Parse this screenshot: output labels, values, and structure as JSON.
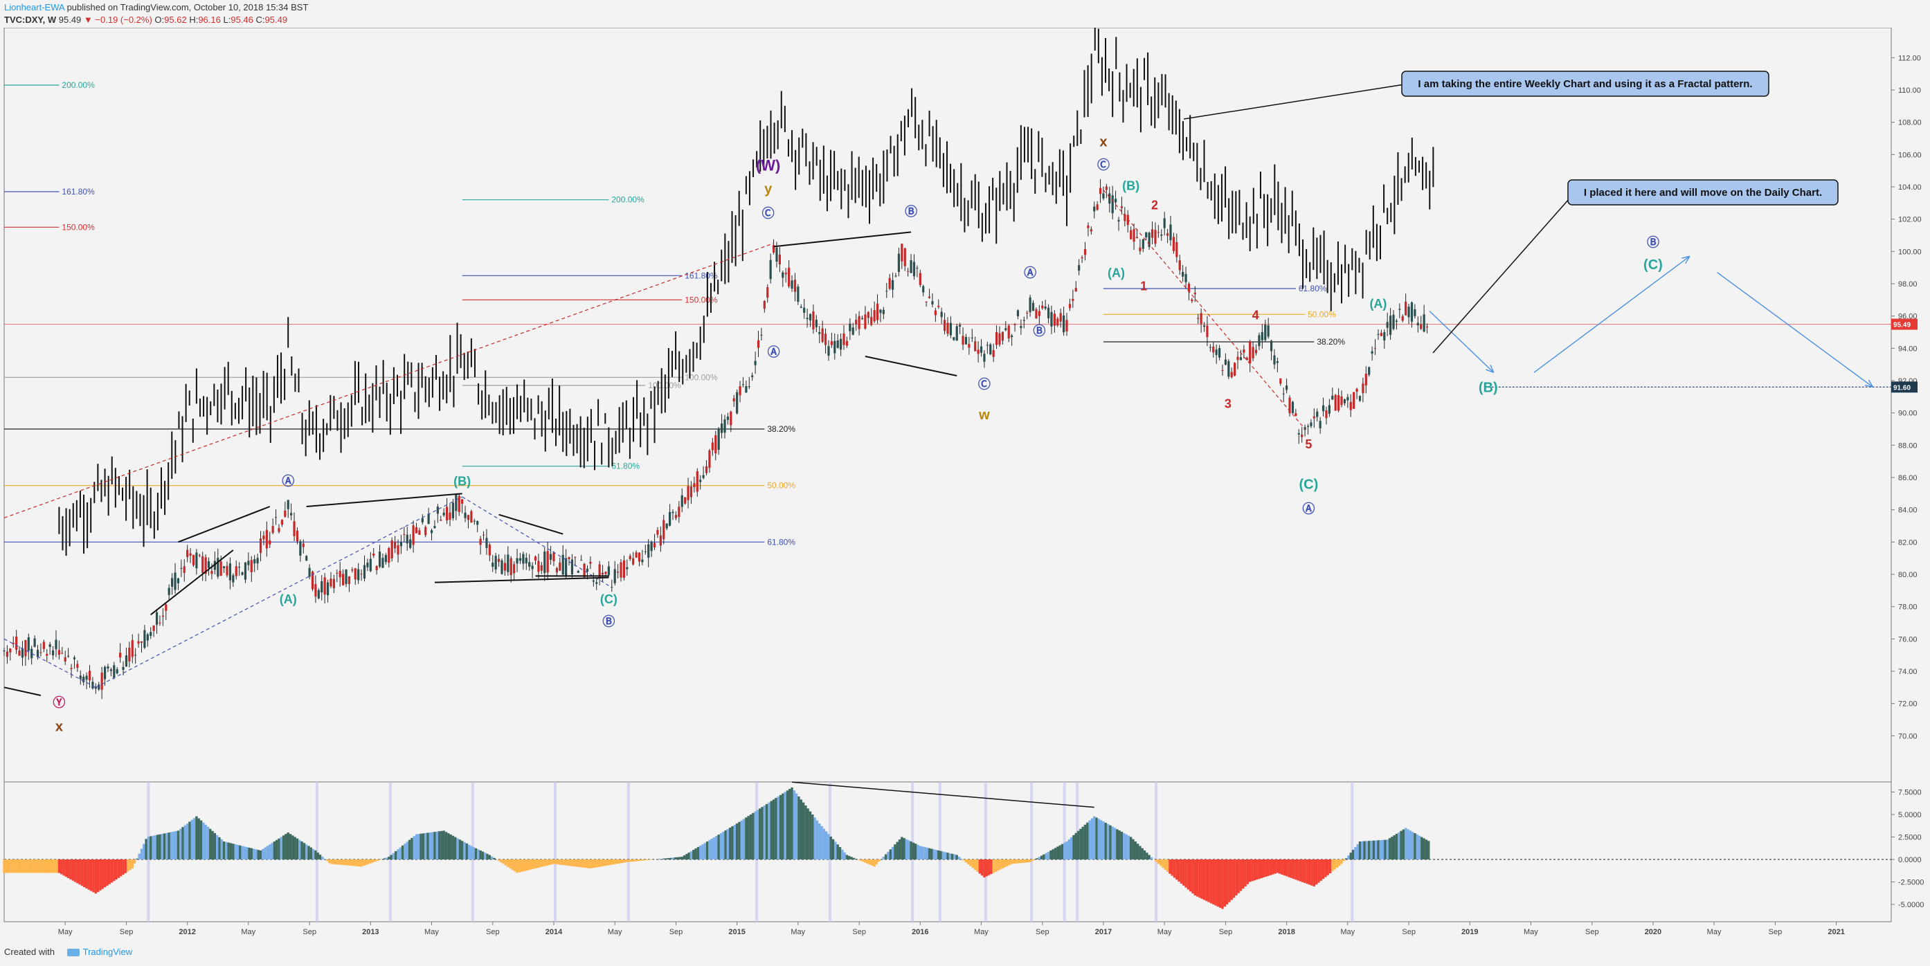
{
  "header": {
    "author": "Lionheart-EWA",
    "published": "published on TradingView.com, October 10, 2018 15:34 BST",
    "symbol": "TVC:DXY, W",
    "last": "95.49",
    "change": "▼ −0.19 (−0.2%)",
    "o_label": "O:",
    "o": "95.62",
    "h_label": "H:",
    "h": "96.16",
    "l_label": "L:",
    "l": "95.46",
    "c_label": "C:",
    "c": "95.49"
  },
  "footer": {
    "created": "Created with",
    "brand": "TradingView"
  },
  "colors": {
    "background": "#f3f3f3",
    "up": "#2a4f4f",
    "down": "#c62828",
    "osc_pos_dark": "#3f6b60",
    "osc_pos_light": "#7aaee8",
    "osc_neg_red": "#f44336",
    "osc_neg_orange": "#ffb74d",
    "price_line": "#e57373",
    "fib_green": "#26a69a",
    "fib_blue": "#3f51b5",
    "fib_red": "#d32f2f",
    "fib_orange": "#f5a623",
    "fib_gray": "#9e9e9e"
  },
  "chart_data": {
    "type": "candlestick",
    "y_axis": {
      "min": 68,
      "max": 113,
      "ticks": [
        "112.00",
        "110.00",
        "108.00",
        "106.00",
        "104.00",
        "102.00",
        "100.00",
        "98.00",
        "96.00",
        "94.00",
        "92.00",
        "90.00",
        "88.00",
        "86.00",
        "84.00",
        "82.00",
        "80.00",
        "78.00",
        "76.00",
        "74.00",
        "72.00",
        "70.00"
      ]
    },
    "x_axis": {
      "ticks": [
        "May",
        "Sep",
        "2012",
        "May",
        "Sep",
        "2013",
        "May",
        "Sep",
        "2014",
        "May",
        "Sep",
        "2015",
        "May",
        "Sep",
        "2016",
        "May",
        "Sep",
        "2017",
        "May",
        "Sep",
        "2018",
        "May",
        "Sep",
        "2019",
        "May",
        "Sep",
        "2020",
        "May",
        "Sep",
        "2021"
      ]
    },
    "price_labels": {
      "last": "95.49",
      "target": "91.60"
    },
    "daily_path": [
      [
        2011.3,
        75.5
      ],
      [
        2011.5,
        73.0
      ],
      [
        2011.8,
        76.5
      ],
      [
        2012.0,
        81.0
      ],
      [
        2012.3,
        80.0
      ],
      [
        2012.55,
        84.0
      ],
      [
        2012.7,
        79.0
      ],
      [
        2013.0,
        80.5
      ],
      [
        2013.3,
        83.0
      ],
      [
        2013.5,
        84.5
      ],
      [
        2013.7,
        80.5
      ],
      [
        2014.0,
        80.8
      ],
      [
        2014.3,
        79.8
      ],
      [
        2014.5,
        81.0
      ],
      [
        2014.8,
        86.0
      ],
      [
        2015.1,
        93.0
      ],
      [
        2015.2,
        100.0
      ],
      [
        2015.5,
        94.0
      ],
      [
        2015.8,
        96.5
      ],
      [
        2015.9,
        100.0
      ],
      [
        2016.1,
        96.0
      ],
      [
        2016.35,
        93.5
      ],
      [
        2016.6,
        96.5
      ],
      [
        2016.8,
        95.5
      ],
      [
        2016.95,
        102.5
      ],
      [
        2017.0,
        103.8
      ],
      [
        2017.2,
        100.5
      ],
      [
        2017.35,
        101.5
      ],
      [
        2017.6,
        94.0
      ],
      [
        2017.7,
        92.5
      ],
      [
        2017.9,
        95.0
      ],
      [
        2018.0,
        91.0
      ],
      [
        2018.1,
        88.5
      ],
      [
        2018.25,
        90.5
      ],
      [
        2018.4,
        91.0
      ],
      [
        2018.5,
        94.5
      ],
      [
        2018.65,
        96.5
      ],
      [
        2018.75,
        95.5
      ]
    ],
    "weekly_path": [
      [
        2011.3,
        83.0
      ],
      [
        2011.6,
        85.5
      ],
      [
        2011.8,
        83.5
      ],
      [
        2012.0,
        90.0
      ],
      [
        2012.2,
        91.5
      ],
      [
        2012.45,
        90.0
      ],
      [
        2012.55,
        93.5
      ],
      [
        2012.65,
        88.5
      ],
      [
        2012.9,
        90.5
      ],
      [
        2013.25,
        91.5
      ],
      [
        2013.5,
        93.0
      ],
      [
        2013.7,
        90.5
      ],
      [
        2014.0,
        89.5
      ],
      [
        2014.3,
        88.5
      ],
      [
        2014.5,
        89.5
      ],
      [
        2014.8,
        95.0
      ],
      [
        2015.0,
        101.0
      ],
      [
        2015.2,
        108.5
      ],
      [
        2015.5,
        104.0
      ],
      [
        2015.8,
        104.5
      ],
      [
        2015.95,
        108.5
      ],
      [
        2016.2,
        104.0
      ],
      [
        2016.35,
        102.0
      ],
      [
        2016.6,
        106.0
      ],
      [
        2016.8,
        104.0
      ],
      [
        2016.95,
        112.0
      ],
      [
        2017.1,
        110.5
      ],
      [
        2017.3,
        109.5
      ],
      [
        2017.5,
        106.0
      ],
      [
        2017.7,
        102.0
      ],
      [
        2017.95,
        103.0
      ],
      [
        2018.15,
        99.0
      ],
      [
        2018.35,
        98.5
      ],
      [
        2018.55,
        103.0
      ],
      [
        2018.7,
        104.5
      ],
      [
        2018.8,
        105.0
      ]
    ],
    "oscillator": {
      "ticks": [
        "7.5000",
        "5.0000",
        "2.5000",
        "0.0000",
        "-2.5000",
        "-5.0000"
      ],
      "values": [
        [
          2011.3,
          -1.5
        ],
        [
          2011.5,
          -3.8
        ],
        [
          2011.7,
          -1.0
        ],
        [
          2011.78,
          2.5
        ],
        [
          2011.95,
          3.2
        ],
        [
          2012.05,
          4.8
        ],
        [
          2012.2,
          2.0
        ],
        [
          2012.4,
          1.0
        ],
        [
          2012.55,
          3.0
        ],
        [
          2012.7,
          1.0
        ],
        [
          2012.78,
          -0.5
        ],
        [
          2012.95,
          -0.8
        ],
        [
          2013.1,
          0.3
        ],
        [
          2013.25,
          2.8
        ],
        [
          2013.4,
          3.2
        ],
        [
          2013.55,
          1.5
        ],
        [
          2013.65,
          0.5
        ],
        [
          2013.8,
          -1.5
        ],
        [
          2014.0,
          -0.5
        ],
        [
          2014.2,
          -1.0
        ],
        [
          2014.4,
          -0.3
        ],
        [
          2014.7,
          0.3
        ],
        [
          2015.0,
          4.0
        ],
        [
          2015.3,
          8.0
        ],
        [
          2015.45,
          4.0
        ],
        [
          2015.6,
          0.5
        ],
        [
          2015.75,
          -0.8
        ],
        [
          2015.9,
          2.5
        ],
        [
          2016.0,
          1.5
        ],
        [
          2016.2,
          0.5
        ],
        [
          2016.35,
          -2.0
        ],
        [
          2016.5,
          -0.5
        ],
        [
          2016.6,
          -0.3
        ],
        [
          2016.8,
          2.0
        ],
        [
          2016.95,
          4.8
        ],
        [
          2017.15,
          2.5
        ],
        [
          2017.3,
          -0.5
        ],
        [
          2017.5,
          -4.0
        ],
        [
          2017.65,
          -5.5
        ],
        [
          2017.8,
          -2.5
        ],
        [
          2017.95,
          -1.5
        ],
        [
          2018.15,
          -3.0
        ],
        [
          2018.3,
          -0.5
        ],
        [
          2018.4,
          2.0
        ],
        [
          2018.55,
          2.2
        ],
        [
          2018.65,
          3.5
        ],
        [
          2018.78,
          2.0
        ]
      ]
    },
    "fib_levels": [
      {
        "label": "200.00%",
        "value": 110.3,
        "color": "#26a69a"
      },
      {
        "label": "161.80%",
        "value": 103.7,
        "color": "#3f51b5"
      },
      {
        "label": "150.00%",
        "value": 101.5,
        "color": "#d32f2f"
      },
      {
        "label": "100.00%",
        "value": 92.2,
        "color": "#9e9e9e"
      },
      {
        "label": "38.20%",
        "value": 89.0,
        "color": "#222222"
      },
      {
        "label": "50.00%",
        "value": 85.5,
        "color": "#f5a623"
      },
      {
        "label": "61.80%",
        "value": 82.0,
        "color": "#3f51b5"
      },
      {
        "label": "200.00%",
        "value": 103.2,
        "color": "#26a69a"
      },
      {
        "label": "161.80%",
        "value": 98.5,
        "color": "#3f51b5"
      },
      {
        "label": "150.00%",
        "value": 97.0,
        "color": "#d32f2f"
      },
      {
        "label": "100.00%",
        "value": 91.7,
        "color": "#9e9e9e"
      },
      {
        "label": "61.80%",
        "value": 86.7,
        "color": "#26a69a"
      },
      {
        "label": "61.80%",
        "value": 97.7,
        "color": "#3f51b5"
      },
      {
        "label": "50.00%",
        "value": 96.1,
        "color": "#f5a623"
      },
      {
        "label": "38.20%",
        "value": 94.4,
        "color": "#222222"
      }
    ],
    "wave_labels": [
      "(W)",
      "y",
      "x",
      "w",
      "x",
      "Ⓨ",
      "Ⓐ",
      "(B)",
      "(A)",
      "(C)",
      "Ⓑ",
      "Ⓒ",
      "Ⓑ",
      "Ⓐ",
      "Ⓒ",
      "Ⓐ",
      "Ⓑ",
      "Ⓒ",
      "(B)",
      "(A)",
      "1",
      "2",
      "3",
      "4",
      "5",
      "(C)",
      "Ⓐ",
      "(A)",
      "(B)",
      "Ⓑ",
      "(C)"
    ],
    "annotations": [
      "I am taking the entire Weekly Chart and using it as a Fractal pattern.",
      "I placed it here and will move on the Daily Chart."
    ]
  }
}
